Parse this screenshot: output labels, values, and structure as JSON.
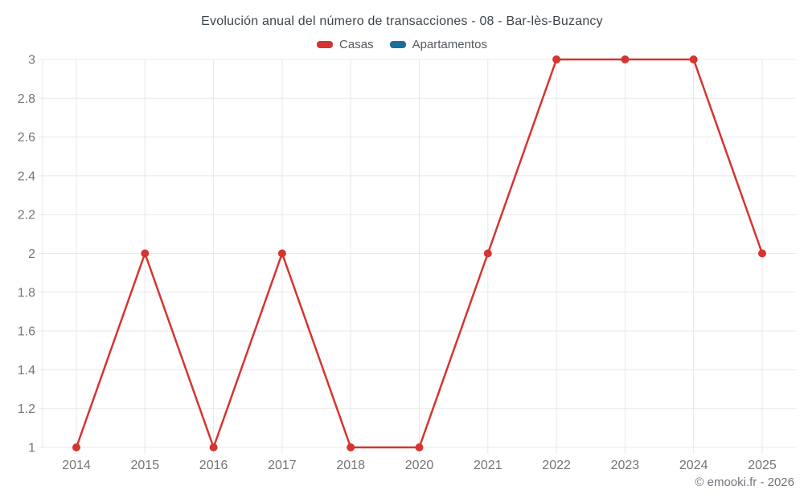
{
  "header": {
    "title": "Evolución anual del número de transacciones - 08 - Bar-lès-Buzancy"
  },
  "legend": {
    "items": [
      {
        "label": "Casas",
        "color": "#d5352e"
      },
      {
        "label": "Apartamentos",
        "color": "#186f9c"
      }
    ]
  },
  "chart_data": {
    "type": "line",
    "title": "Evolución anual del número de transacciones - 08 - Bar-lès-Buzancy",
    "categories": [
      "2014",
      "2015",
      "2016",
      "2017",
      "2018",
      "2020",
      "2021",
      "2022",
      "2023",
      "2024",
      "2025"
    ],
    "series": [
      {
        "name": "Casas",
        "color": "#d5352e",
        "values": [
          1,
          2,
          1,
          2,
          1,
          1,
          2,
          3,
          3,
          3,
          2
        ]
      },
      {
        "name": "Apartamentos",
        "color": "#186f9c",
        "values": []
      }
    ],
    "xlabel": "",
    "ylabel": "",
    "ylim": [
      1,
      3
    ],
    "y_ticks": [
      1,
      1.2,
      1.4,
      1.6,
      1.8,
      2,
      2.2,
      2.4,
      2.6,
      2.8,
      3
    ],
    "grid": true,
    "legend_position": "top",
    "marker": "circle"
  },
  "footer": {
    "attribution": "© emooki.fr - 2026"
  },
  "colors": {
    "grid": "#e8e8e8",
    "axis_label": "#757575",
    "title": "#3d454c",
    "background": "#ffffff"
  }
}
